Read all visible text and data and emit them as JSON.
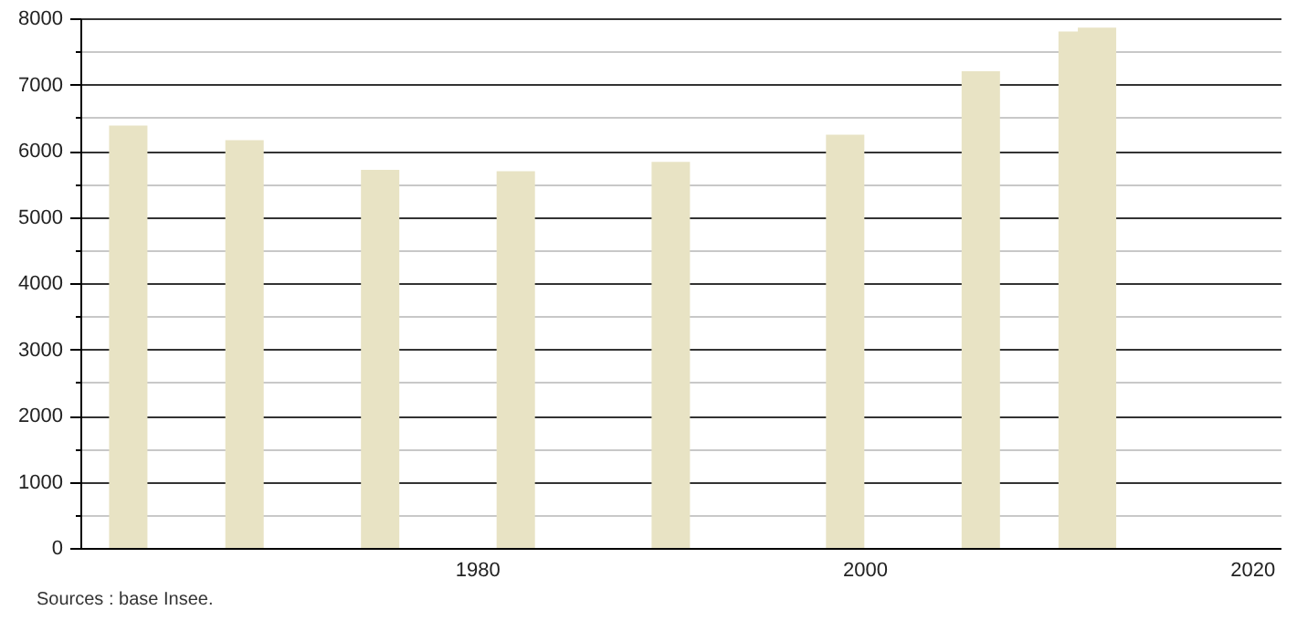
{
  "chart_data": {
    "type": "bar",
    "x": [
      1962,
      1968,
      1975,
      1982,
      1990,
      1999,
      2006,
      2011,
      2012
    ],
    "values": [
      6380,
      6160,
      5710,
      5690,
      5830,
      6240,
      7200,
      7800,
      7860
    ],
    "color": "#e8e3c4",
    "xlim": [
      1960,
      2021
    ],
    "xticks": [
      1980,
      2000,
      2020
    ],
    "ylim": [
      0,
      8000
    ],
    "yticks": [
      0,
      {
        "value": 500,
        "label": null
      },
      1000,
      {
        "value": 1500,
        "label": null
      },
      2000,
      {
        "value": 2500,
        "label": null
      },
      3000,
      {
        "value": 3500,
        "label": null
      },
      4000,
      {
        "value": 4500,
        "label": null
      },
      5000,
      {
        "value": 5500,
        "label": null
      },
      6000,
      {
        "value": 6500,
        "label": null
      },
      7000,
      {
        "value": 7500,
        "label": null
      },
      8000
    ],
    "grid": "y",
    "annotations": [
      "Sources : base Insee."
    ]
  }
}
